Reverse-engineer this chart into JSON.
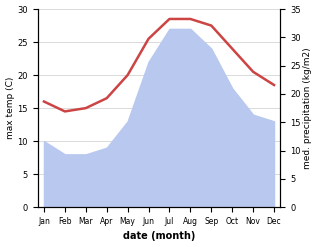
{
  "months": [
    "Jan",
    "Feb",
    "Mar",
    "Apr",
    "May",
    "Jun",
    "Jul",
    "Aug",
    "Sep",
    "Oct",
    "Nov",
    "Dec"
  ],
  "temp": [
    16,
    14.5,
    15,
    16.5,
    20,
    25.5,
    28.5,
    28.5,
    27.5,
    24,
    20.5,
    18.5
  ],
  "precip": [
    10,
    8,
    8,
    9,
    13,
    22,
    27,
    27,
    24,
    18,
    14,
    13
  ],
  "temp_color": "#cc4444",
  "precip_color": "#b8c8ee",
  "bg_color": "#ffffff",
  "ylabel_left": "max temp (C)",
  "ylabel_right": "med. precipitation (kg/m2)",
  "xlabel": "date (month)",
  "ylim_left": [
    0,
    30
  ],
  "ylim_right": [
    0,
    35
  ],
  "temp_linewidth": 1.8,
  "grid_color": "#cccccc"
}
